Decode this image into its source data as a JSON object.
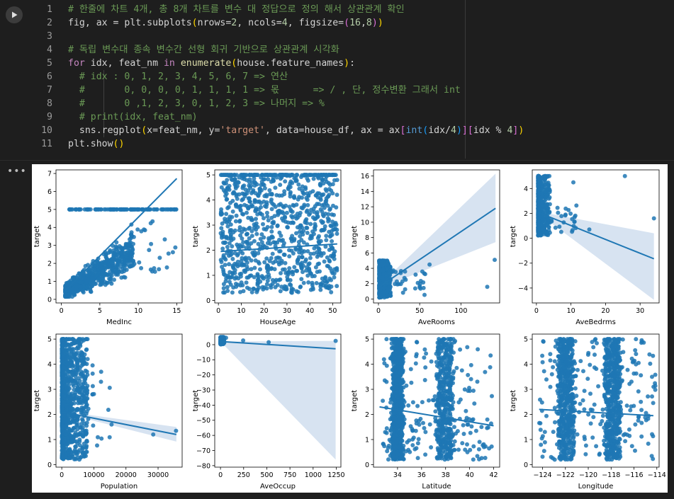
{
  "code_cell": {
    "lines": [
      {
        "n": "1",
        "segs": [
          [
            "comment",
            "# 한줄에 차트 4개, 총 8개 차트를 변수 대 정답으로 정의 해서 상관관계 확인"
          ]
        ]
      },
      {
        "n": "2",
        "segs": [
          [
            "plain",
            "fig, ax = plt.subplots"
          ],
          [
            "br",
            "("
          ],
          [
            "plain",
            "nrows="
          ],
          [
            "num",
            "2"
          ],
          [
            "plain",
            ", ncols="
          ],
          [
            "num",
            "4"
          ],
          [
            "plain",
            ", figsize="
          ],
          [
            "br2",
            "("
          ],
          [
            "num",
            "16"
          ],
          [
            "plain",
            ","
          ],
          [
            "num",
            "8"
          ],
          [
            "br2",
            ")"
          ],
          [
            "br",
            ")"
          ]
        ]
      },
      {
        "n": "3",
        "segs": []
      },
      {
        "n": "4",
        "segs": [
          [
            "comment",
            "# 독립 변수대 종속 변수간 선형 회귀 기반으로 상관관계 시각화"
          ]
        ]
      },
      {
        "n": "5",
        "segs": [
          [
            "kw",
            "for"
          ],
          [
            "plain",
            " idx, feat_nm "
          ],
          [
            "kw",
            "in"
          ],
          [
            "plain",
            " "
          ],
          [
            "fn",
            "enumerate"
          ],
          [
            "br",
            "("
          ],
          [
            "plain",
            "house.feature_names"
          ],
          [
            "br",
            ")"
          ],
          [
            "plain",
            ":"
          ]
        ]
      },
      {
        "n": "6",
        "segs": [
          [
            "plain",
            "  "
          ],
          [
            "comment",
            "# idx : 0, 1, 2, 3, 4, 5, 6, 7 => 연산"
          ]
        ]
      },
      {
        "n": "7",
        "segs": [
          [
            "plain",
            "  "
          ],
          [
            "comment",
            "#       0, 0, 0, 0, 1, 1, 1, 1 => 몫      => / , 단, 정수변환 그래서 int"
          ]
        ]
      },
      {
        "n": "8",
        "segs": [
          [
            "plain",
            "  "
          ],
          [
            "comment",
            "#       0 ,1, 2, 3, 0, 1, 2, 3 => 나머지 => %"
          ]
        ]
      },
      {
        "n": "9",
        "segs": [
          [
            "plain",
            "  "
          ],
          [
            "comment",
            "# print(idx, feat_nm)"
          ]
        ]
      },
      {
        "n": "10",
        "segs": [
          [
            "plain",
            "  sns.regplot"
          ],
          [
            "br",
            "("
          ],
          [
            "plain",
            "x=feat_nm, y="
          ],
          [
            "str",
            "'target'"
          ],
          [
            "plain",
            ", data=house_df, ax = ax"
          ],
          [
            "br2",
            "["
          ],
          [
            "bl",
            "int"
          ],
          [
            "br3",
            "("
          ],
          [
            "plain",
            "idx/"
          ],
          [
            "num",
            "4"
          ],
          [
            "br3",
            ")"
          ],
          [
            "br2",
            "]"
          ],
          [
            "br2",
            "["
          ],
          [
            "plain",
            "idx % "
          ],
          [
            "num",
            "4"
          ],
          [
            "br2",
            "]"
          ],
          [
            "br",
            ")"
          ]
        ]
      },
      {
        "n": "11",
        "segs": [
          [
            "plain",
            "plt.show"
          ],
          [
            "br",
            "()"
          ]
        ]
      }
    ]
  },
  "output_menu_label": "•••",
  "colors": {
    "point": "#1f77b4",
    "band": "#c9d9ec",
    "line": "#1f77b4"
  },
  "chart_data": [
    {
      "type": "scatter",
      "xlabel": "MedInc",
      "ylabel": "target",
      "xlim": [
        -0.7,
        15.7
      ],
      "ylim": [
        -0.2,
        7.2
      ],
      "xticks": [
        {
          "v": 0,
          "t": "0"
        },
        {
          "v": 5,
          "t": "5"
        },
        {
          "v": 10,
          "t": "10"
        },
        {
          "v": 15,
          "t": "15"
        }
      ],
      "yticks": [
        {
          "v": 0,
          "t": "0"
        },
        {
          "v": 1,
          "t": "1"
        },
        {
          "v": 2,
          "t": "2"
        },
        {
          "v": 3,
          "t": "3"
        },
        {
          "v": 4,
          "t": "4"
        },
        {
          "v": 5,
          "t": "5"
        },
        {
          "v": 6,
          "t": "6"
        },
        {
          "v": 7,
          "t": "7"
        }
      ],
      "regression": {
        "x": [
          0.5,
          15
        ],
        "y": [
          0.47,
          6.72
        ]
      },
      "band": null,
      "pattern": "medinc"
    },
    {
      "type": "scatter",
      "xlabel": "HouseAge",
      "ylabel": "target",
      "xlim": [
        -1.6,
        53.6
      ],
      "ylim": [
        -0.1,
        5.2
      ],
      "xticks": [
        {
          "v": 0,
          "t": "0"
        },
        {
          "v": 10,
          "t": "10"
        },
        {
          "v": 20,
          "t": "20"
        },
        {
          "v": 30,
          "t": "30"
        },
        {
          "v": 40,
          "t": "40"
        },
        {
          "v": 50,
          "t": "50"
        }
      ],
      "yticks": [
        {
          "v": 0,
          "t": "0"
        },
        {
          "v": 1,
          "t": "1"
        },
        {
          "v": 2,
          "t": "2"
        },
        {
          "v": 3,
          "t": "3"
        },
        {
          "v": 4,
          "t": "4"
        },
        {
          "v": 5,
          "t": "5"
        }
      ],
      "regression": {
        "x": [
          1,
          52
        ],
        "y": [
          1.95,
          2.25
        ]
      },
      "band": null,
      "pattern": "houseage"
    },
    {
      "type": "scatter",
      "xlabel": "AveRooms",
      "ylabel": "target",
      "xlim": [
        -6,
        147
      ],
      "ylim": [
        -0.5,
        16.8
      ],
      "xticks": [
        {
          "v": 0,
          "t": "0"
        },
        {
          "v": 50,
          "t": "50"
        },
        {
          "v": 100,
          "t": "100"
        }
      ],
      "yticks": [
        {
          "v": 0,
          "t": "0"
        },
        {
          "v": 2,
          "t": "2"
        },
        {
          "v": 4,
          "t": "4"
        },
        {
          "v": 6,
          "t": "6"
        },
        {
          "v": 8,
          "t": "8"
        },
        {
          "v": 10,
          "t": "10"
        },
        {
          "v": 12,
          "t": "12"
        },
        {
          "v": 14,
          "t": "14"
        },
        {
          "v": 16,
          "t": "16"
        }
      ],
      "regression": {
        "x": [
          1,
          142
        ],
        "y": [
          1.6,
          11.8
        ]
      },
      "band": {
        "x": [
          1,
          142
        ],
        "lo": [
          1.4,
          7.4
        ],
        "hi": [
          1.8,
          16.3
        ]
      },
      "pattern": "averooms"
    },
    {
      "type": "scatter",
      "xlabel": "AveBedrms",
      "ylabel": "target",
      "xlim": [
        -1.2,
        35.5
      ],
      "ylim": [
        -5.2,
        5.5
      ],
      "xticks": [
        {
          "v": 0,
          "t": "0"
        },
        {
          "v": 10,
          "t": "10"
        },
        {
          "v": 20,
          "t": "20"
        },
        {
          "v": 30,
          "t": "30"
        }
      ],
      "yticks": [
        {
          "v": -4,
          "t": "−4"
        },
        {
          "v": -2,
          "t": "−2"
        },
        {
          "v": 0,
          "t": "0"
        },
        {
          "v": 2,
          "t": "2"
        },
        {
          "v": 4,
          "t": "4"
        }
      ],
      "regression": {
        "x": [
          0.3,
          34
        ],
        "y": [
          2.1,
          -1.65
        ]
      },
      "band": {
        "x": [
          0.3,
          34
        ],
        "lo": [
          2.05,
          -4.95
        ],
        "hi": [
          2.15,
          0.4
        ]
      },
      "pattern": "avebedrms"
    },
    {
      "type": "scatter",
      "xlabel": "Population",
      "ylabel": "target",
      "xlim": [
        -1800,
        37500
      ],
      "ylim": [
        -0.1,
        5.2
      ],
      "xticks": [
        {
          "v": 0,
          "t": "0"
        },
        {
          "v": 10000,
          "t": "10000"
        },
        {
          "v": 20000,
          "t": "20000"
        },
        {
          "v": 30000,
          "t": "30000"
        }
      ],
      "yticks": [
        {
          "v": 0,
          "t": "0"
        },
        {
          "v": 1,
          "t": "1"
        },
        {
          "v": 2,
          "t": "2"
        },
        {
          "v": 3,
          "t": "3"
        },
        {
          "v": 4,
          "t": "4"
        },
        {
          "v": 5,
          "t": "5"
        }
      ],
      "regression": {
        "x": [
          3,
          35700
        ],
        "y": [
          2.1,
          1.2
        ]
      },
      "band": {
        "x": [
          3,
          35700
        ],
        "lo": [
          2.07,
          0.92
        ],
        "hi": [
          2.13,
          1.5
        ]
      },
      "pattern": "population"
    },
    {
      "type": "scatter",
      "xlabel": "AveOccup",
      "ylabel": "target",
      "xlim": [
        -62,
        1300
      ],
      "ylim": [
        -81,
        7
      ],
      "xticks": [
        {
          "v": 0,
          "t": "0"
        },
        {
          "v": 250,
          "t": "250"
        },
        {
          "v": 500,
          "t": "500"
        },
        {
          "v": 750,
          "t": "750"
        },
        {
          "v": 1000,
          "t": "1000"
        },
        {
          "v": 1250,
          "t": "1250"
        }
      ],
      "yticks": [
        {
          "v": 0,
          "t": "0"
        },
        {
          "v": -10,
          "t": "−10"
        },
        {
          "v": -20,
          "t": "−20"
        },
        {
          "v": -30,
          "t": "−30"
        },
        {
          "v": -40,
          "t": "−40"
        },
        {
          "v": -50,
          "t": "−50"
        },
        {
          "v": -60,
          "t": "−60"
        },
        {
          "v": -70,
          "t": "−70"
        },
        {
          "v": -80,
          "t": "−80"
        }
      ],
      "regression": {
        "x": [
          1,
          1243
        ],
        "y": [
          2.07,
          -2.7
        ]
      },
      "band": {
        "x": [
          1,
          1243
        ],
        "lo": [
          2.0,
          -76
        ],
        "hi": [
          2.1,
          2.5
        ]
      },
      "pattern": "aveoccup"
    },
    {
      "type": "scatter",
      "xlabel": "Latitude",
      "ylabel": "target",
      "xlim": [
        32,
        42.5
      ],
      "ylim": [
        -0.1,
        5.2
      ],
      "xticks": [
        {
          "v": 34,
          "t": "34"
        },
        {
          "v": 36,
          "t": "36"
        },
        {
          "v": 38,
          "t": "38"
        },
        {
          "v": 40,
          "t": "40"
        },
        {
          "v": 42,
          "t": "42"
        }
      ],
      "yticks": [
        {
          "v": 0,
          "t": "0"
        },
        {
          "v": 1,
          "t": "1"
        },
        {
          "v": 2,
          "t": "2"
        },
        {
          "v": 3,
          "t": "3"
        },
        {
          "v": 4,
          "t": "4"
        },
        {
          "v": 5,
          "t": "5"
        }
      ],
      "regression": {
        "x": [
          32.5,
          42
        ],
        "y": [
          2.3,
          1.55
        ]
      },
      "band": null,
      "pattern": "latitude"
    },
    {
      "type": "scatter",
      "xlabel": "Longitude",
      "ylabel": "target",
      "xlim": [
        -124.9,
        -113.8
      ],
      "ylim": [
        -0.1,
        5.2
      ],
      "xticks": [
        {
          "v": -124,
          "t": "−124"
        },
        {
          "v": -122,
          "t": "−122"
        },
        {
          "v": -120,
          "t": "−120"
        },
        {
          "v": -118,
          "t": "−118"
        },
        {
          "v": -116,
          "t": "−116"
        },
        {
          "v": -114,
          "t": "−114"
        }
      ],
      "yticks": [
        {
          "v": 0,
          "t": "0"
        },
        {
          "v": 1,
          "t": "1"
        },
        {
          "v": 2,
          "t": "2"
        },
        {
          "v": 3,
          "t": "3"
        },
        {
          "v": 4,
          "t": "4"
        },
        {
          "v": 5,
          "t": "5"
        }
      ],
      "regression": {
        "x": [
          -124.3,
          -114.3
        ],
        "y": [
          2.2,
          1.95
        ]
      },
      "band": null,
      "pattern": "longitude"
    }
  ]
}
